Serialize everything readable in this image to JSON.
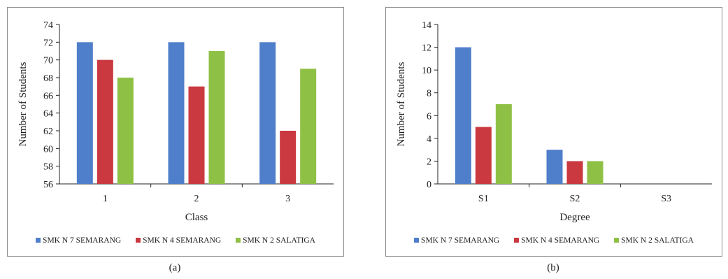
{
  "chart_data": [
    {
      "type": "bar",
      "categories": [
        "1",
        "2",
        "3"
      ],
      "series": [
        {
          "name": "SMK N 7 SEMARANG",
          "values": [
            72,
            72,
            72
          ]
        },
        {
          "name": "SMK N 4 SEMARANG",
          "values": [
            70,
            67,
            62
          ]
        },
        {
          "name": "SMK N 2 SALATIGA",
          "values": [
            68,
            71,
            69
          ]
        }
      ],
      "xlabel": "Class",
      "ylabel": "Number of Students",
      "ylim": [
        56,
        74
      ],
      "yticks": [
        "56",
        "58",
        "60",
        "62",
        "64",
        "66",
        "68",
        "70",
        "72",
        "74"
      ],
      "legend_position": "bottom",
      "grid": false,
      "caption": "(a)"
    },
    {
      "type": "bar",
      "categories": [
        "S1",
        "S2",
        "S3"
      ],
      "series": [
        {
          "name": "SMK N 7 SEMARANG",
          "values": [
            12,
            3,
            0
          ]
        },
        {
          "name": "SMK N 4 SEMARANG",
          "values": [
            5,
            2,
            0
          ]
        },
        {
          "name": "SMK N 2 SALATIGA",
          "values": [
            7,
            2,
            0
          ]
        }
      ],
      "xlabel": "Degree",
      "ylabel": "Number of Students",
      "ylim": [
        0,
        14
      ],
      "yticks": [
        "0",
        "2",
        "4",
        "6",
        "8",
        "10",
        "12",
        "14"
      ],
      "legend_position": "bottom",
      "grid": false,
      "caption": "(b)"
    }
  ],
  "colors": {
    "series": [
      "#4f7fcb",
      "#c9393f",
      "#8fc046"
    ],
    "axis": "#222222"
  }
}
